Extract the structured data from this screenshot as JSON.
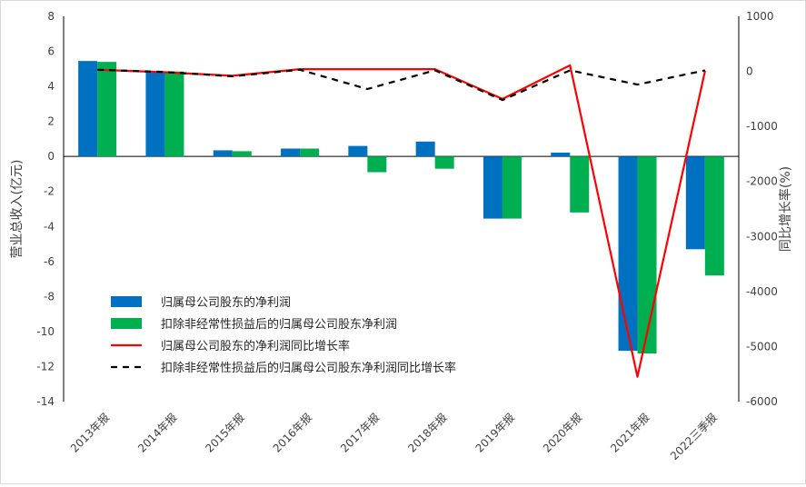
{
  "chart_data": {
    "type": "bar",
    "categories": [
      "2013年报",
      "2014年报",
      "2015年报",
      "2016年报",
      "2017年报",
      "2018年报",
      "2019年报",
      "2020年报",
      "2021年报",
      "2022三季报"
    ],
    "ylabel": "营业总收入(亿元)",
    "ylabel_right": "同比增长率(%)",
    "ylim": [
      -14,
      8
    ],
    "y_ticks": [
      8,
      6,
      4,
      2,
      0,
      -2,
      -4,
      -6,
      -8,
      -10,
      -12,
      -14
    ],
    "ylim_right": [
      -6000,
      1000
    ],
    "y_right_ticks": [
      1000,
      0,
      -1000,
      -2000,
      -3000,
      -4000,
      -5000,
      -6000
    ],
    "legend_position": "left-bottom",
    "series": [
      {
        "name": "归属母公司股东的净利润",
        "type": "bar",
        "axis": "left",
        "color": "#0070C0",
        "values": [
          5.45,
          4.85,
          0.35,
          0.45,
          0.6,
          0.85,
          -3.55,
          0.22,
          -11.1,
          -5.3
        ]
      },
      {
        "name": "扣除非经常性损益后的归属母公司股东净利润",
        "type": "bar",
        "axis": "left",
        "color": "#00B050",
        "values": [
          5.4,
          4.85,
          0.3,
          0.45,
          -0.9,
          -0.7,
          -3.55,
          -3.2,
          -11.25,
          -6.8
        ]
      },
      {
        "name": "归属母公司股东的净利润同比增长率",
        "type": "line",
        "axis": "right",
        "color": "#FF0000",
        "dash": "solid",
        "values": [
          30,
          -15,
          -80,
          40,
          40,
          40,
          -500,
          110,
          -5550,
          10
        ]
      },
      {
        "name": "扣除非经常性损益后的归属母公司股东净利润同比增长率",
        "type": "line",
        "axis": "right",
        "color": "#000000",
        "dash": "dashed",
        "values": [
          30,
          -10,
          -90,
          30,
          -320,
          20,
          -520,
          20,
          -240,
          20
        ]
      }
    ]
  }
}
